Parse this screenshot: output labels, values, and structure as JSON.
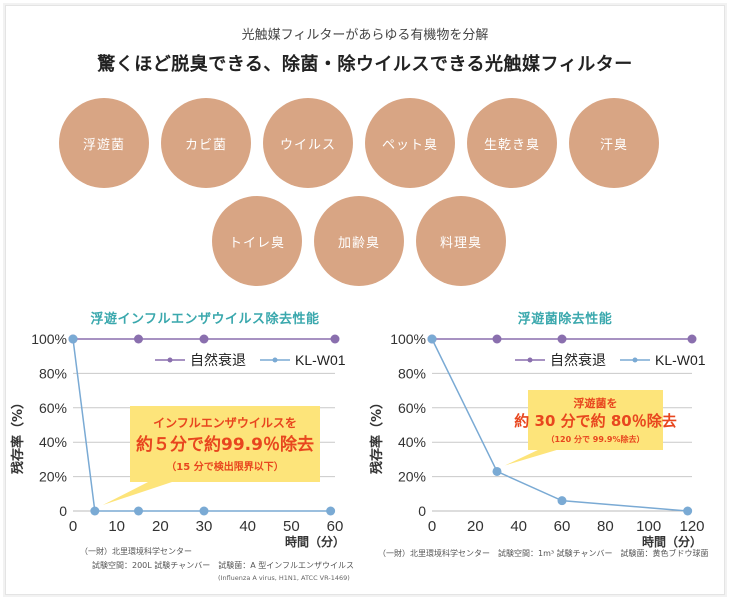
{
  "header": {
    "subtitle": "光触媒フィルターがあらゆる有機物を分解",
    "headline": "驚くほど脱臭できる、除菌・除ウイルスできる光触媒フィルター"
  },
  "targets": {
    "row1": [
      "浮遊菌",
      "カビ菌",
      "ウイルス",
      "ペット臭",
      "生乾き臭",
      "汗臭"
    ],
    "row2": [
      "トイレ臭",
      "加齢臭",
      "料理臭"
    ]
  },
  "colors": {
    "circle": "#d8a584",
    "title": "#3aa8ad",
    "natural": "#8a6fae",
    "product": "#7aaad4",
    "callout_bg": "#fde47a",
    "callout_text": "#e8461e",
    "grid": "#c9c9c9"
  },
  "chart_data": [
    {
      "type": "line",
      "title": "浮遊インフルエンザウイルス除去性能",
      "xlabel": "時間（分）",
      "ylabel": "残存率（%）",
      "xlim": [
        0,
        60
      ],
      "ylim": [
        0,
        100
      ],
      "x_ticks": [
        "0",
        "10",
        "20",
        "30",
        "40",
        "50",
        "60"
      ],
      "x_tick_values": [
        0,
        10,
        20,
        30,
        40,
        50,
        60
      ],
      "y_ticks": [
        "0",
        "20%",
        "40%",
        "60%",
        "80%",
        "100%"
      ],
      "y_tick_values": [
        0,
        20,
        40,
        60,
        80,
        100
      ],
      "grid": true,
      "legend_position": "top-right",
      "series": [
        {
          "name": "自然衰退",
          "x": [
            0,
            15,
            30,
            60
          ],
          "y": [
            100,
            100,
            100,
            100
          ]
        },
        {
          "name": "KL-W01",
          "x": [
            0,
            5,
            15,
            30,
            59
          ],
          "y": [
            100,
            0,
            0,
            0,
            0
          ]
        }
      ],
      "annotation": {
        "line1": "インフルエンザウイルスを",
        "line2": "約５分で約99.9％除去",
        "line3": "（15 分で検出限界以下）",
        "points_to": [
          5,
          0
        ]
      },
      "notes": {
        "line1": "（一財）北里環境科学センター",
        "line2": "試験空間：200L 試験チャンバー　試験菌：A 型インフルエンザウイルス",
        "line3": "(Influenza A virus, H1N1, ATCC VR-1469)"
      }
    },
    {
      "type": "line",
      "title": "浮遊菌除去性能",
      "xlabel": "時間（分）",
      "ylabel": "残存率（%）",
      "xlim": [
        0,
        120
      ],
      "ylim": [
        0,
        100
      ],
      "x_ticks": [
        "0",
        "20",
        "40",
        "60",
        "80",
        "100",
        "120"
      ],
      "x_tick_values": [
        0,
        20,
        40,
        60,
        80,
        100,
        120
      ],
      "y_ticks": [
        "0",
        "20%",
        "40%",
        "60%",
        "80%",
        "100%"
      ],
      "y_tick_values": [
        0,
        20,
        40,
        60,
        80,
        100
      ],
      "grid": true,
      "legend_position": "top-right",
      "series": [
        {
          "name": "自然衰退",
          "x": [
            0,
            30,
            60,
            120
          ],
          "y": [
            100,
            100,
            100,
            100
          ]
        },
        {
          "name": "KL-W01",
          "x": [
            0,
            30,
            60,
            118
          ],
          "y": [
            100,
            23,
            6,
            0
          ]
        }
      ],
      "annotation": {
        "line1": "浮遊菌を",
        "line2": "約 30 分で約 80％除去",
        "line3": "（120 分で 99.9%除去）",
        "points_to": [
          30,
          23
        ]
      },
      "notes": {
        "line1": "（一財）北里環境科学センター　試験空間：1m³ 試験チャンバー　試験菌：黄色ブドウ球菌"
      }
    }
  ]
}
